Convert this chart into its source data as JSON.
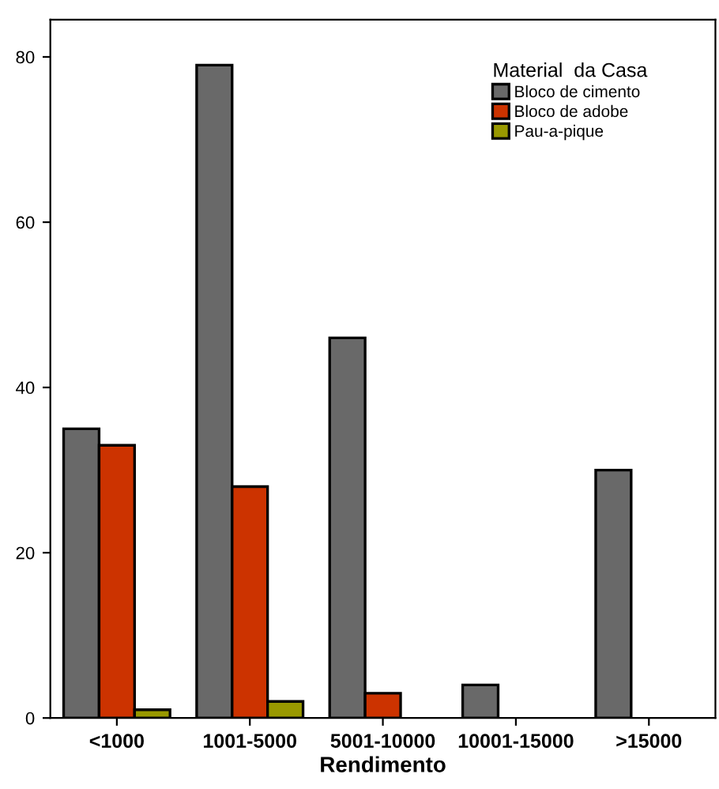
{
  "chart_data": {
    "type": "bar",
    "xlabel": "Rendimento",
    "legend_title": "Material  da Casa",
    "legend": "top right",
    "grid": false,
    "categories": [
      "<1000",
      "1001-5000",
      "5001-10000",
      "10001-15000",
      ">15000"
    ],
    "series": [
      {
        "name": "Bloco de cimento",
        "color": "#696969",
        "values": [
          35,
          79,
          46,
          4,
          30
        ]
      },
      {
        "name": "Bloco de adobe",
        "color": "#cc3300",
        "values": [
          33,
          28,
          3,
          null,
          null
        ]
      },
      {
        "name": "Pau-a-pique",
        "color": "#999900",
        "values": [
          1,
          2,
          null,
          null,
          null
        ]
      }
    ],
    "ylim": [
      0,
      84.5
    ],
    "yticks": [
      0,
      20,
      40,
      60,
      80
    ]
  }
}
